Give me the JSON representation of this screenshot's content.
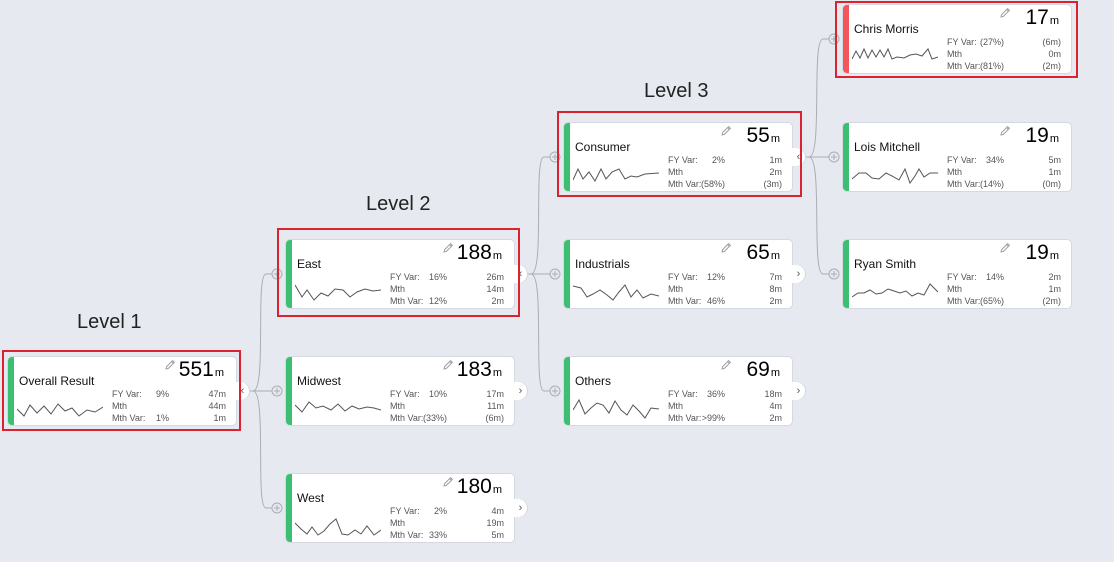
{
  "levels": {
    "level1": "Level 1",
    "level2": "Level 2",
    "level3": "Level 3"
  },
  "colors": {
    "positive": "#3cbf72",
    "negative": "#f2555a",
    "highlight": "#d9232e"
  },
  "icons": {
    "edit": "pencil-icon",
    "expand": "chevron-right-icon",
    "collapse": "chevron-left-icon",
    "add": "plus-circle-icon"
  },
  "nodes": {
    "overall": {
      "name": "Overall Result",
      "value": "551",
      "unit": "m",
      "status": "positive",
      "fy_var": {
        "label": "FY Var:",
        "pct": "9%",
        "val": "47m"
      },
      "mth": {
        "label": "Mth",
        "val": "44m"
      },
      "mth_var": {
        "label": "Mth Var:",
        "pct": "1%",
        "val": "1m"
      }
    },
    "east": {
      "name": "East",
      "value": "188",
      "unit": "m",
      "status": "positive",
      "fy_var": {
        "label": "FY Var:",
        "pct": "16%",
        "val": "26m"
      },
      "mth": {
        "label": "Mth",
        "val": "14m"
      },
      "mth_var": {
        "label": "Mth Var:",
        "pct": "12%",
        "val": "2m"
      }
    },
    "midwest": {
      "name": "Midwest",
      "value": "183",
      "unit": "m",
      "status": "positive",
      "fy_var": {
        "label": "FY Var:",
        "pct": "10%",
        "val": "17m"
      },
      "mth": {
        "label": "Mth",
        "val": "11m"
      },
      "mth_var": {
        "label": "Mth Var:",
        "pct": "(33%)",
        "val": "(6m)"
      }
    },
    "west": {
      "name": "West",
      "value": "180",
      "unit": "m",
      "status": "positive",
      "fy_var": {
        "label": "FY Var:",
        "pct": "2%",
        "val": "4m"
      },
      "mth": {
        "label": "Mth",
        "val": "19m"
      },
      "mth_var": {
        "label": "Mth Var:",
        "pct": "33%",
        "val": "5m"
      }
    },
    "consumer": {
      "name": "Consumer",
      "value": "55",
      "unit": "m",
      "status": "positive",
      "fy_var": {
        "label": "FY Var:",
        "pct": "2%",
        "val": "1m"
      },
      "mth": {
        "label": "Mth",
        "val": "2m"
      },
      "mth_var": {
        "label": "Mth Var:",
        "pct": "(58%)",
        "val": "(3m)"
      }
    },
    "industrials": {
      "name": "Industrials",
      "value": "65",
      "unit": "m",
      "status": "positive",
      "fy_var": {
        "label": "FY Var:",
        "pct": "12%",
        "val": "7m"
      },
      "mth": {
        "label": "Mth",
        "val": "8m"
      },
      "mth_var": {
        "label": "Mth Var:",
        "pct": "46%",
        "val": "2m"
      }
    },
    "others": {
      "name": "Others",
      "value": "69",
      "unit": "m",
      "status": "positive",
      "fy_var": {
        "label": "FY Var:",
        "pct": "36%",
        "val": "18m"
      },
      "mth": {
        "label": "Mth",
        "val": "4m"
      },
      "mth_var": {
        "label": "Mth Var:",
        "pct": ">99%",
        "val": "2m"
      }
    },
    "chris": {
      "name": "Chris Morris",
      "value": "17",
      "unit": "m",
      "status": "negative",
      "fy_var": {
        "label": "FY Var:",
        "pct": "(27%)",
        "val": "(6m)"
      },
      "mth": {
        "label": "Mth",
        "val": "0m"
      },
      "mth_var": {
        "label": "Mth Var:",
        "pct": "(81%)",
        "val": "(2m)"
      }
    },
    "lois": {
      "name": "Lois Mitchell",
      "value": "19",
      "unit": "m",
      "status": "positive",
      "fy_var": {
        "label": "FY Var:",
        "pct": "34%",
        "val": "5m"
      },
      "mth": {
        "label": "Mth",
        "val": "1m"
      },
      "mth_var": {
        "label": "Mth Var:",
        "pct": "(14%)",
        "val": "(0m)"
      }
    },
    "ryan": {
      "name": "Ryan Smith",
      "value": "19",
      "unit": "m",
      "status": "positive",
      "fy_var": {
        "label": "FY Var:",
        "pct": "14%",
        "val": "2m"
      },
      "mth": {
        "label": "Mth",
        "val": "1m"
      },
      "mth_var": {
        "label": "Mth Var:",
        "pct": "(65%)",
        "val": "(2m)"
      }
    }
  }
}
